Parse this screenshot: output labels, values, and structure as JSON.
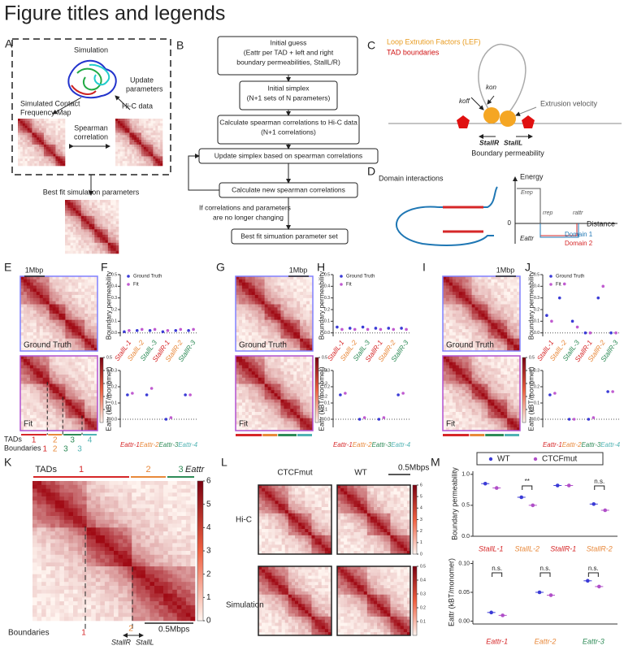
{
  "title": "Figure titles and legends",
  "panel_labels": [
    "A",
    "B",
    "C",
    "D",
    "E",
    "F",
    "G",
    "H",
    "I",
    "J",
    "K",
    "L",
    "M"
  ],
  "tad_colors": [
    "#d62728",
    "#e8883a",
    "#2e8b57",
    "#4fb3b3"
  ],
  "panel_a": {
    "simulation": "Simulation",
    "update": [
      "Update",
      "parameters"
    ],
    "hic": "Hi-C data",
    "simulated": [
      "Simulated Contact",
      "Frequency Map"
    ],
    "spearman": [
      "Spearman",
      "correlation"
    ],
    "best_fit": "Best fit simulation parameters"
  },
  "panel_b": {
    "steps": [
      [
        "Initial guess",
        "(Eattr per TAD + left and right",
        "boundary permeabilities, StallL/R)"
      ],
      [
        "Initial simplex",
        "(N+1 sets of N parameters)"
      ],
      [
        "Calculate spearman correlations to Hi-C data",
        "(N+1 correlations)"
      ],
      [
        "Update simplex based on spearman correlations"
      ],
      [
        "Calculate new spearman correlations"
      ],
      [
        "Best fit simuation parameter set"
      ]
    ],
    "condition": [
      "If correlations and parameters",
      "are no longer changing"
    ]
  },
  "panel_c": {
    "lef": "Loop Extrution Factors (LEF)",
    "tad_boundaries": "TAD boundaries",
    "koff": "koff",
    "kon": "kon",
    "velocity": "Extrusion velocity",
    "stall_r": "StallR",
    "stall_l": "StallL",
    "permeability": "Boundary permeability"
  },
  "panel_d": {
    "title": "Domain interactions",
    "energy": "Energy",
    "erep": "Erep",
    "rrep": "rrep",
    "rattr": "rattr",
    "distance": "Distance",
    "zero": "0",
    "eattr": "Eattr",
    "domain1": "Domain 1",
    "domain2": "Domain 2"
  },
  "heatmaps": {
    "scale": "1Mbp",
    "ground_truth": "Ground Truth",
    "fit": "Fit",
    "colorbar_ticks": [
      0.1,
      0.2,
      0.3,
      0.4,
      0.5
    ]
  },
  "panel_e": {
    "tads_label": "TADs",
    "tads": [
      "1",
      "2",
      "3",
      "4"
    ],
    "boundaries_label": "Boundaries",
    "boundaries": [
      "1",
      "2",
      "3",
      "3"
    ]
  },
  "chart_data": [
    {
      "type": "dot",
      "ylabel": "Boundary permeability",
      "categories": [
        "StallL-1",
        "StallL-2",
        "StallL-3",
        "StallR-1",
        "StallR-2",
        "StallR-3"
      ],
      "category_colors": [
        "#d62728",
        "#e8883a",
        "#2e8b57",
        "#d62728",
        "#e8883a",
        "#2e8b57"
      ],
      "series": [
        {
          "name": "Ground Truth",
          "color": "#3b3bd6",
          "values": [
            0.01,
            0.02,
            0.02,
            0.01,
            0.02,
            0.02
          ]
        },
        {
          "name": "Fit",
          "color": "#c05bd0",
          "values": [
            0.02,
            0.03,
            0.03,
            0.02,
            0.03,
            0.03
          ]
        }
      ],
      "ylim": [
        -0.03,
        0.5
      ],
      "yticks": [
        {
          "value": 0,
          "label": "0.0"
        },
        0.1,
        0.2,
        0.3,
        0.4,
        0.5
      ],
      "legend": "upper left"
    },
    {
      "type": "dot",
      "ylabel": "Eattr (kBT/monomer)",
      "categories": [
        "Eattr-1",
        "Eattr-2",
        "Eattr-3",
        "Eattr-4"
      ],
      "category_colors": [
        "#d62728",
        "#e8883a",
        "#2e8b57",
        "#4fb3b3"
      ],
      "series": [
        {
          "name": "Ground Truth",
          "color": "#3b3bd6",
          "values": [
            0.15,
            0.15,
            0,
            0.15
          ]
        },
        {
          "name": "Fit",
          "color": "#c05bd0",
          "values": [
            0.16,
            0.19,
            0.01,
            0.15
          ]
        }
      ],
      "ylim": [
        -0.05,
        0.3
      ],
      "yticks": [
        {
          "value": 0,
          "label": "0.0"
        },
        0.1,
        0.2,
        0.3
      ]
    },
    {
      "type": "dot",
      "ylabel": "Boundary permeability",
      "categories": [
        "StallL-1",
        "StallL-2",
        "StallL-3",
        "StallR-1",
        "StallR-2",
        "StallR-3"
      ],
      "category_colors": [
        "#d62728",
        "#e8883a",
        "#2e8b57",
        "#d62728",
        "#e8883a",
        "#2e8b57"
      ],
      "series": [
        {
          "name": "Ground Truth",
          "color": "#3b3bd6",
          "values": [
            0.05,
            0.04,
            0.05,
            0.04,
            0.04,
            0.04
          ]
        },
        {
          "name": "Fit",
          "color": "#c05bd0",
          "values": [
            0.03,
            0.03,
            0.03,
            0.03,
            0.03,
            0.03
          ]
        }
      ],
      "ylim": [
        -0.03,
        0.5
      ],
      "yticks": [
        {
          "value": 0,
          "label": "0.0"
        },
        0.1,
        0.2,
        0.3,
        0.4,
        0.5
      ],
      "legend": "upper left"
    },
    {
      "type": "dot",
      "ylabel": "Eattr (kBT/monomer)",
      "categories": [
        "Eattr-1",
        "Eattr-2",
        "Eattr-3",
        "Eattr-4"
      ],
      "category_colors": [
        "#d62728",
        "#e8883a",
        "#2e8b57",
        "#4fb3b3"
      ],
      "series": [
        {
          "name": "Ground Truth",
          "color": "#3b3bd6",
          "values": [
            0.15,
            0,
            0,
            0.15
          ]
        },
        {
          "name": "Fit",
          "color": "#c05bd0",
          "values": [
            0.16,
            0.01,
            0.01,
            0.16
          ]
        }
      ],
      "ylim": [
        -0.05,
        0.3
      ],
      "yticks": [
        {
          "value": 0,
          "label": "0.0"
        },
        0.1,
        0.2,
        0.3
      ]
    },
    {
      "type": "dot",
      "ylabel": "Boundary permeability",
      "categories": [
        "StallL-1",
        "StallL-2",
        "StallL-3",
        "StallR-1",
        "StallR-2",
        "StallR-3"
      ],
      "category_colors": [
        "#d62728",
        "#e8883a",
        "#2e8b57",
        "#d62728",
        "#e8883a",
        "#2e8b57"
      ],
      "series": [
        {
          "name": "Ground Truth",
          "color": "#3b3bd6",
          "values": [
            0.15,
            0.3,
            0.1,
            0,
            0.3,
            0
          ]
        },
        {
          "name": "Fit",
          "color": "#c05bd0",
          "values": [
            0.1,
            0.42,
            0.05,
            0,
            0.4,
            0
          ]
        }
      ],
      "ylim": [
        -0.03,
        0.5
      ],
      "yticks": [
        {
          "value": 0,
          "label": "0.0"
        },
        0.1,
        0.2,
        0.3,
        0.4,
        0.5
      ],
      "legend": "upper left"
    },
    {
      "type": "dot",
      "ylabel": "Eattr (kBT/monomer)",
      "categories": [
        "Eattr-1",
        "Eattr-2",
        "Eattr-3",
        "Eattr-4"
      ],
      "category_colors": [
        "#d62728",
        "#e8883a",
        "#2e8b57",
        "#4fb3b3"
      ],
      "series": [
        {
          "name": "Ground Truth",
          "color": "#3b3bd6",
          "values": [
            0.15,
            0,
            0,
            0.17
          ]
        },
        {
          "name": "Fit",
          "color": "#c05bd0",
          "values": [
            0.16,
            0,
            0.01,
            0.17
          ]
        }
      ],
      "ylim": [
        -0.05,
        0.3
      ],
      "yticks": [
        {
          "value": 0,
          "label": "0.0"
        },
        0.1,
        0.2,
        0.3
      ]
    },
    {
      "type": "dot",
      "ylabel": "Boundary permeability",
      "categories": [
        "StallL-1",
        "StallL-2",
        "StallR-1",
        "StallR-2"
      ],
      "category_colors": [
        "#d62728",
        "#e8883a",
        "#d62728",
        "#e8883a"
      ],
      "series": [
        {
          "name": "WT",
          "color": "#3b3bd6",
          "values": [
            0.85,
            0.63,
            0.82,
            0.52
          ]
        },
        {
          "name": "CTCFmut",
          "color": "#b04fc8",
          "values": [
            0.78,
            0.5,
            0.82,
            0.42
          ]
        }
      ],
      "ylim": [
        0,
        1.05
      ],
      "yticks": [
        {
          "value": 0,
          "label": "0.0"
        },
        0.5,
        {
          "value": 1,
          "label": "1.0"
        }
      ],
      "legend": "above",
      "annotations": [
        "**",
        "n.s."
      ]
    },
    {
      "type": "dot",
      "ylabel": "Eattr (kBT/monomer)",
      "categories": [
        "Eattr-1",
        "Eattr-2",
        "Eattr-3"
      ],
      "category_colors": [
        "#d62728",
        "#e8883a",
        "#2e8b57"
      ],
      "series": [
        {
          "name": "WT",
          "color": "#3b3bd6",
          "values": [
            0.015,
            0.05,
            0.07
          ]
        },
        {
          "name": "CTCFmut",
          "color": "#b04fc8",
          "values": [
            0.01,
            0.045,
            0.06
          ]
        }
      ],
      "ylim": [
        -0.005,
        0.105
      ],
      "yticks": [
        {
          "value": 0,
          "label": "0.00"
        },
        0.05,
        {
          "value": 0.1,
          "label": "0.10"
        }
      ],
      "annotations": [
        "n.s.",
        "n.s.",
        "n.s."
      ]
    }
  ],
  "panel_k": {
    "tads_label": "TADs",
    "tads": [
      "1",
      "2",
      "3"
    ],
    "eattr": "Eattr",
    "colorbar_ticks": [
      0,
      1,
      2,
      3,
      4,
      5,
      6
    ],
    "boundaries_label": "Boundaries",
    "boundaries": [
      "1",
      "2"
    ],
    "stall_r": "StallR",
    "stall_l": "StallL",
    "scale": "0.5Mbps"
  },
  "panel_l": {
    "ctcfmut": "CTCFmut",
    "wt": "WT",
    "scale": "0.5Mbps",
    "hic": "Hi-C",
    "simulation": "Simulation",
    "hic_ticks": [
      0,
      1,
      2,
      3,
      4,
      5,
      6
    ],
    "sim_ticks": [
      0.1,
      0.2,
      0.3,
      0.4,
      0.5
    ]
  }
}
